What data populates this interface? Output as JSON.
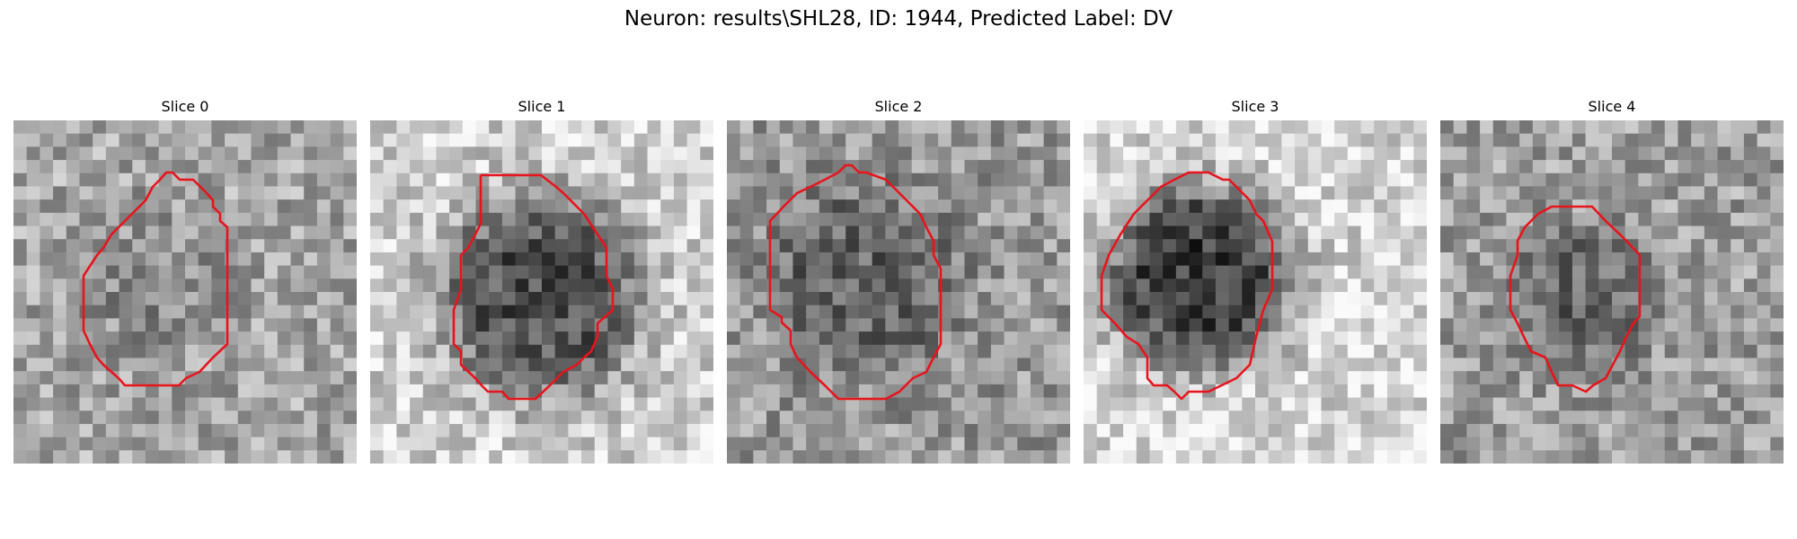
{
  "figure": {
    "title": "Neuron: results\\SHL28, ID: 1944, Predicted Label: DV",
    "contour_color": "#e8141c",
    "panels": [
      {
        "title": "Slice 0",
        "seed": 11,
        "center_dark": 0.55,
        "surround": 0.65
      },
      {
        "title": "Slice 1",
        "seed": 23,
        "center_dark": 0.3,
        "surround": 0.82
      },
      {
        "title": "Slice 2",
        "seed": 37,
        "center_dark": 0.38,
        "surround": 0.6
      },
      {
        "title": "Slice 3",
        "seed": 41,
        "center_dark": 0.22,
        "surround": 0.85
      },
      {
        "title": "Slice 4",
        "seed": 53,
        "center_dark": 0.4,
        "surround": 0.62
      }
    ]
  }
}
